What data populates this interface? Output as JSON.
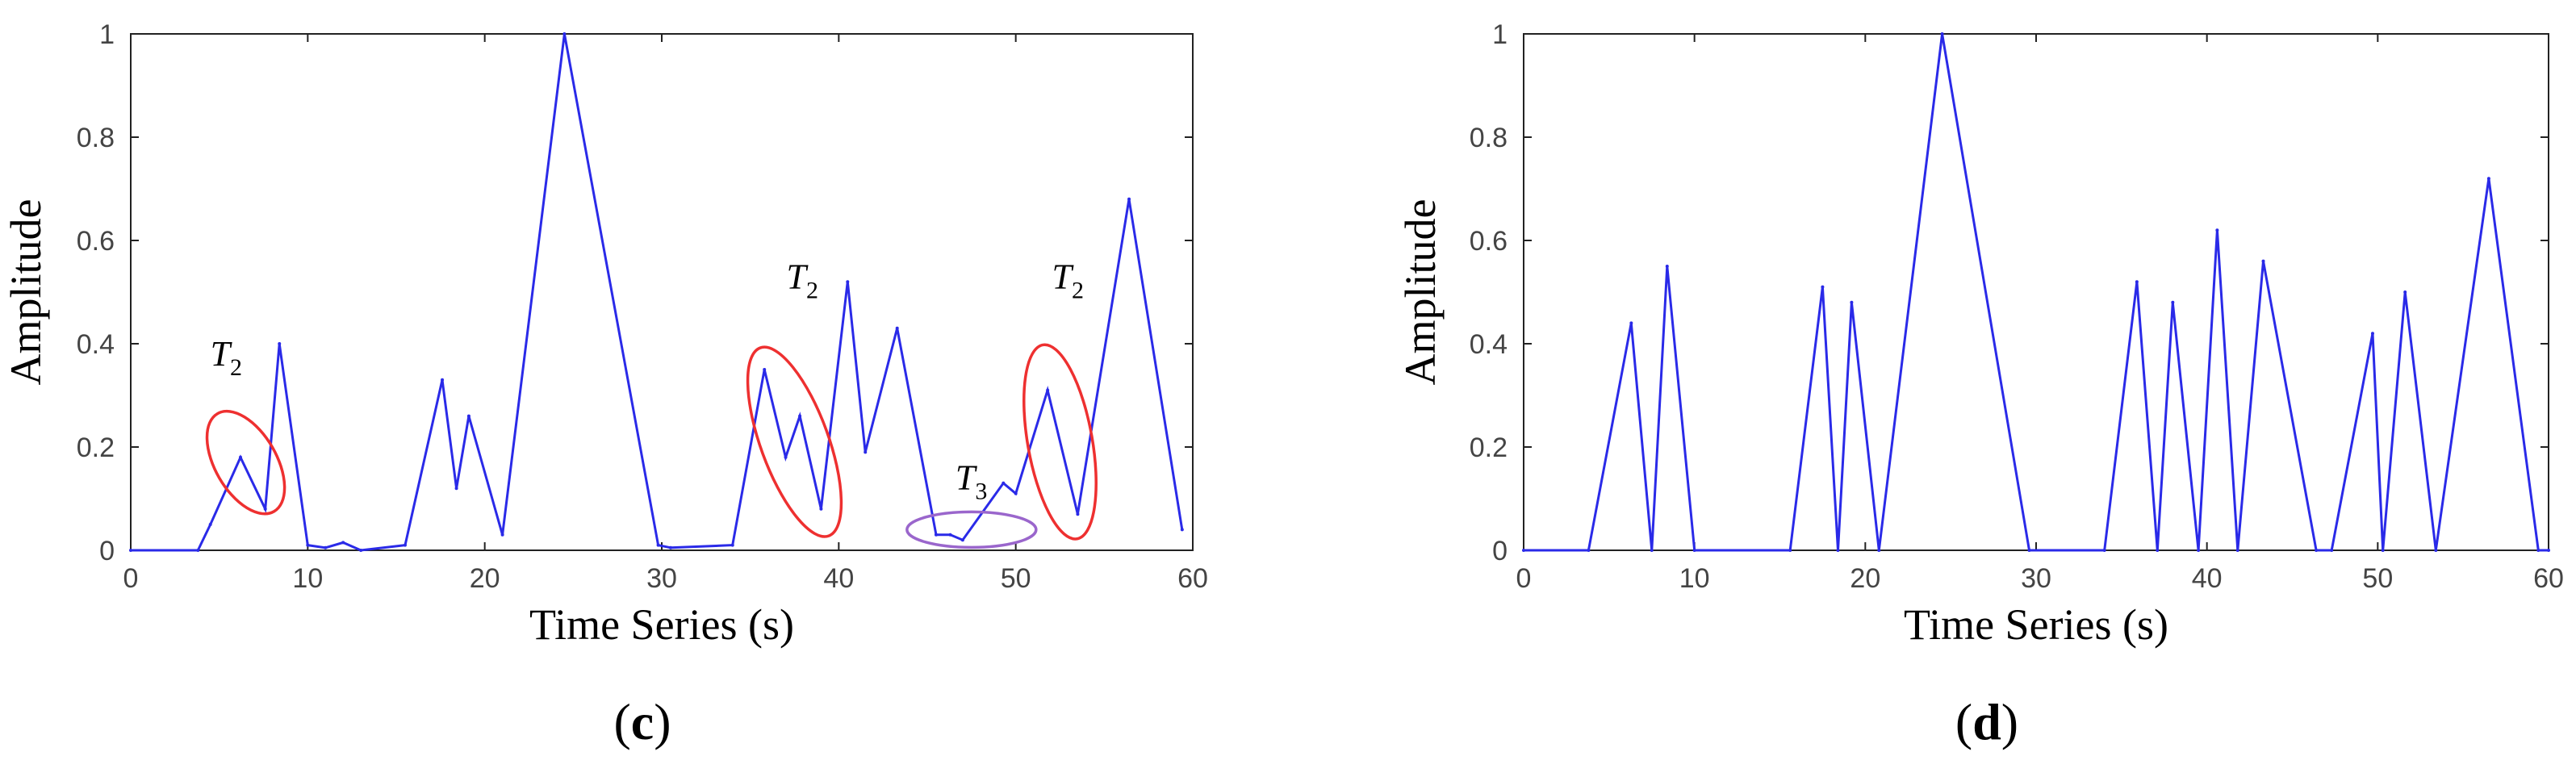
{
  "figure": {
    "panels": [
      {
        "caption_letter": "c"
      },
      {
        "caption_letter": "d"
      }
    ]
  },
  "chart_data": [
    {
      "type": "line",
      "xlabel": "Time Series (s)",
      "ylabel": "Amplitude",
      "xlim": [
        0,
        60
      ],
      "ylim": [
        0,
        1
      ],
      "xticks": [
        "0",
        "10",
        "20",
        "30",
        "40",
        "50",
        "60"
      ],
      "yticks": [
        "0",
        "0.2",
        "0.4",
        "0.6",
        "0.8",
        "1"
      ],
      "grid": false,
      "series_color": "#2a2ae8",
      "x": [
        0,
        3.8,
        4.5,
        6.2,
        7.6,
        8.4,
        10,
        11,
        12,
        13,
        15.5,
        17.6,
        18.4,
        19.1,
        21,
        24.5,
        29.8,
        30.5,
        34,
        35.8,
        37,
        37.8,
        39,
        40.5,
        41.5,
        43.3,
        45.5,
        46.3,
        47,
        49.3,
        50,
        51.8,
        53.5,
        56.4,
        59.4
      ],
      "values": [
        0,
        0,
        0.05,
        0.18,
        0.08,
        0.4,
        0.01,
        0.005,
        0.015,
        0,
        0.01,
        0.33,
        0.12,
        0.26,
        0.03,
        1.0,
        0.01,
        0.005,
        0.01,
        0.35,
        0.18,
        0.26,
        0.08,
        0.52,
        0.19,
        0.43,
        0.03,
        0.03,
        0.02,
        0.13,
        0.11,
        0.31,
        0.07,
        0.68,
        0.04
      ],
      "annotations": [
        {
          "label": "T",
          "subscript": "2",
          "shape": "ellipse",
          "color": "#ee3030",
          "x": 6.5,
          "y": 0.17
        },
        {
          "label": "T",
          "subscript": "2",
          "shape": "ellipse",
          "color": "#ee3030",
          "x": 37.5,
          "y": 0.21
        },
        {
          "label": "T",
          "subscript": "3",
          "shape": "ellipse",
          "color": "#9a66cc",
          "x": 47.5,
          "y": 0.04
        },
        {
          "label": "T",
          "subscript": "2",
          "shape": "ellipse",
          "color": "#ee3030",
          "x": 52.5,
          "y": 0.21
        }
      ]
    },
    {
      "type": "line",
      "xlabel": "Time Series (s)",
      "ylabel": "Amplitude",
      "xlim": [
        0,
        60
      ],
      "ylim": [
        0,
        1
      ],
      "xticks": [
        "0",
        "10",
        "20",
        "30",
        "40",
        "50",
        "60"
      ],
      "yticks": [
        "0",
        "0.2",
        "0.4",
        "0.6",
        "0.8",
        "1"
      ],
      "grid": false,
      "series_color": "#2a2ae8",
      "x": [
        0,
        3.8,
        6.3,
        7.5,
        8.4,
        10,
        15.6,
        17.5,
        18.4,
        19.2,
        20.8,
        24.5,
        29.6,
        34,
        35.9,
        37.1,
        38,
        39.5,
        40.6,
        41.8,
        43.3,
        46.4,
        47.3,
        49.7,
        50.3,
        51.6,
        53.4,
        56.5,
        59.4,
        60
      ],
      "values": [
        0,
        0,
        0.44,
        0,
        0.55,
        0,
        0,
        0.51,
        0,
        0.48,
        0,
        1.0,
        0,
        0,
        0.52,
        0,
        0.48,
        0,
        0.62,
        0,
        0.56,
        0,
        0,
        0.42,
        0,
        0.5,
        0,
        0.72,
        0,
        0
      ]
    }
  ]
}
